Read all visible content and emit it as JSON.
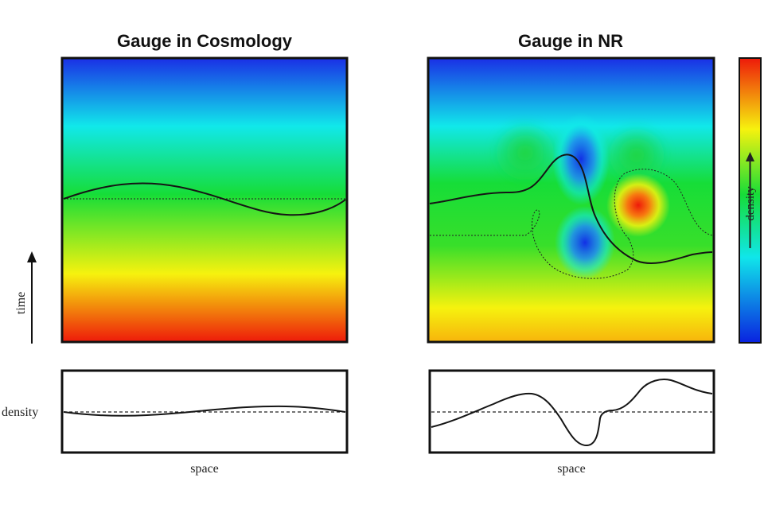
{
  "panels": {
    "left_title": "Gauge in Cosmology",
    "right_title": "Gauge in NR"
  },
  "labels": {
    "time_axis": "time",
    "density_axis": "density",
    "space_left": "space",
    "space_right": "space",
    "colorbar": "density"
  },
  "colors": {
    "frame": "#111111",
    "colorbar_low": "#0a22e0",
    "colorbar_mid": "#16dd38",
    "colorbar_high": "#ee1a0a"
  }
}
